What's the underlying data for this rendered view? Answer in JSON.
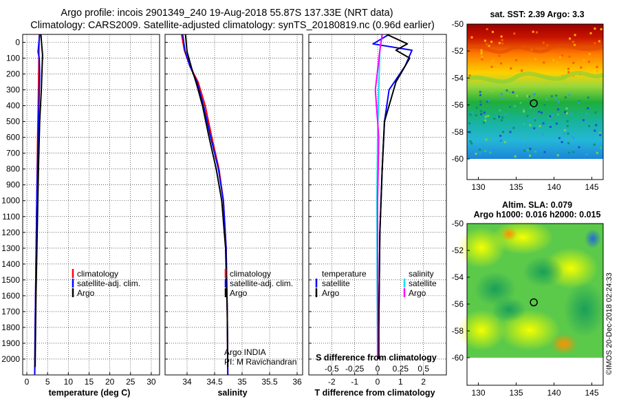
{
  "header": {
    "line1": "Argo profile: incois 2901349_240 19-Aug-2018 55.87S 137.33E (NRT data)",
    "line2": "Climatology: CARS2009. Satellite-adjusted climatology: synTS_20180819.nc (0.96d earlier)"
  },
  "colors": {
    "climatology": "#ff0000",
    "satellite": "#0000ff",
    "argo": "#000000",
    "sat_salinity": "#00e5ee",
    "argo_salinity": "#ff00ff"
  },
  "chart_data": [
    {
      "type": "line",
      "id": "temperature",
      "xlabel": "temperature (deg C)",
      "ylabel": "",
      "xlim": [
        -1,
        32
      ],
      "ylim": [
        2100,
        -50
      ],
      "xticks": [
        0,
        5,
        10,
        15,
        20,
        25,
        30
      ],
      "yticks": [
        0,
        100,
        200,
        300,
        400,
        500,
        600,
        700,
        800,
        900,
        1000,
        1100,
        1200,
        1300,
        1400,
        1500,
        1600,
        1700,
        1800,
        1900,
        2000
      ],
      "series": [
        {
          "name": "climatology",
          "color": "#ff0000",
          "points": [
            [
              3.0,
              -50
            ],
            [
              2.9,
              100
            ],
            [
              2.8,
              300
            ],
            [
              2.6,
              600
            ],
            [
              2.4,
              1000
            ],
            [
              2.2,
              1400
            ],
            [
              2.0,
              1800
            ],
            [
              1.9,
              2100
            ]
          ]
        },
        {
          "name": "satellite-adj. clim.",
          "color": "#0000ff",
          "points": [
            [
              3.1,
              -50
            ],
            [
              2.7,
              60
            ],
            [
              3.0,
              100
            ],
            [
              3.1,
              200
            ],
            [
              3.0,
              300
            ],
            [
              2.7,
              600
            ],
            [
              2.4,
              1000
            ],
            [
              2.2,
              1400
            ],
            [
              2.0,
              1800
            ],
            [
              1.9,
              2100
            ]
          ]
        },
        {
          "name": "Argo",
          "color": "#000000",
          "points": [
            [
              3.4,
              -50
            ],
            [
              3.6,
              20
            ],
            [
              3.8,
              80
            ],
            [
              3.7,
              150
            ],
            [
              3.5,
              300
            ],
            [
              3.1,
              500
            ],
            [
              2.8,
              800
            ],
            [
              2.5,
              1200
            ],
            [
              2.2,
              1600
            ],
            [
              2.0,
              2050
            ]
          ]
        }
      ],
      "legend": {
        "position": "lower-right",
        "items": [
          "climatology",
          "satellite-adj. clim.",
          "Argo"
        ]
      }
    },
    {
      "type": "line",
      "id": "salinity",
      "xlabel": "salinity",
      "xlim": [
        33.6,
        36.1
      ],
      "ylim": [
        2100,
        -50
      ],
      "xticks": [
        34,
        34.5,
        35,
        35.5,
        36
      ],
      "xticklabels": [
        "34",
        "34.5",
        "35",
        "35.5",
        "36"
      ],
      "series": [
        {
          "name": "climatology",
          "color": "#ff0000",
          "points": [
            [
              33.9,
              -50
            ],
            [
              33.95,
              50
            ],
            [
              34.05,
              150
            ],
            [
              34.2,
              250
            ],
            [
              34.33,
              400
            ],
            [
              34.45,
              600
            ],
            [
              34.58,
              800
            ],
            [
              34.66,
              1000
            ],
            [
              34.71,
              1300
            ],
            [
              34.73,
              1700
            ],
            [
              34.74,
              2100
            ]
          ]
        },
        {
          "name": "satellite-adj. clim.",
          "color": "#0000ff",
          "points": [
            [
              33.92,
              -50
            ],
            [
              33.96,
              50
            ],
            [
              34.05,
              150
            ],
            [
              34.18,
              250
            ],
            [
              34.3,
              400
            ],
            [
              34.43,
              600
            ],
            [
              34.57,
              800
            ],
            [
              34.66,
              1000
            ],
            [
              34.71,
              1300
            ],
            [
              34.73,
              1700
            ],
            [
              34.74,
              2100
            ]
          ]
        },
        {
          "name": "Argo",
          "color": "#000000",
          "points": [
            [
              33.97,
              -50
            ],
            [
              34.0,
              60
            ],
            [
              34.08,
              160
            ],
            [
              34.17,
              260
            ],
            [
              34.28,
              400
            ],
            [
              34.4,
              600
            ],
            [
              34.53,
              800
            ],
            [
              34.63,
              1000
            ],
            [
              34.7,
              1300
            ],
            [
              34.73,
              1700
            ],
            [
              34.74,
              2050
            ]
          ]
        }
      ],
      "legend": {
        "position": "lower-right",
        "items": [
          "climatology",
          "satellite-adj. clim.",
          "Argo"
        ]
      },
      "annotation": [
        "Argo INDIA",
        "PI: M Ravichandran"
      ]
    },
    {
      "type": "line",
      "id": "differences",
      "xlabel": "T difference from climatology",
      "xlabel_top": "S difference from climatology",
      "xlim": [
        -3,
        3
      ],
      "ylim": [
        2100,
        -50
      ],
      "xticks": [
        -2,
        -1,
        0,
        1,
        2
      ],
      "xticks_top": [
        -0.5,
        -0.25,
        0,
        0.25,
        0.5
      ],
      "xticklabels_top": [
        "-0.5",
        "-0.25",
        "0",
        "0.25",
        "0.5"
      ],
      "series": [
        {
          "name": "temperature satellite",
          "color": "#0000ff",
          "points": [
            [
              0.5,
              -50
            ],
            [
              -0.2,
              10
            ],
            [
              1.5,
              50
            ],
            [
              1.2,
              150
            ],
            [
              0.5,
              300
            ],
            [
              0.3,
              500
            ],
            [
              0.2,
              800
            ],
            [
              0.1,
              1200
            ],
            [
              0.05,
              1800
            ],
            [
              0.05,
              2000
            ]
          ]
        },
        {
          "name": "temperature Argo",
          "color": "#000000",
          "points": [
            [
              0.4,
              -50
            ],
            [
              1.3,
              10
            ],
            [
              0.8,
              50
            ],
            [
              1.4,
              100
            ],
            [
              0.8,
              250
            ],
            [
              0.3,
              500
            ],
            [
              0.2,
              800
            ],
            [
              0.1,
              1200
            ],
            [
              0.05,
              1800
            ],
            [
              0.05,
              2000
            ]
          ]
        },
        {
          "name": "salinity satellite",
          "color": "#00e5ee",
          "points": [
            [
              0.2,
              -50
            ],
            [
              0.1,
              50
            ],
            [
              0.05,
              300
            ],
            [
              0.0,
              600
            ],
            [
              -0.03,
              1000
            ],
            [
              -0.02,
              1500
            ],
            [
              0,
              2000
            ]
          ]
        },
        {
          "name": "salinity Argo",
          "color": "#ff00ff",
          "points": [
            [
              0.2,
              -50
            ],
            [
              0.1,
              50
            ],
            [
              -0.1,
              300
            ],
            [
              0.05,
              600
            ],
            [
              0.0,
              1000
            ],
            [
              0.0,
              1500
            ],
            [
              0,
              2000
            ]
          ]
        }
      ],
      "legend": {
        "temperature_title": "temperature",
        "salinity_title": "salinity",
        "temperature_items": [
          "satellite",
          "Argo"
        ],
        "salinity_items": [
          "satellite",
          "Argo"
        ]
      }
    },
    {
      "type": "heatmap",
      "id": "sst_map",
      "title": "sat. SST: 2.39  Argo: 3.3",
      "xlim": [
        128.5,
        146.5
      ],
      "ylim": [
        -61.5,
        -50
      ],
      "xticks": [
        130,
        135,
        140,
        145
      ],
      "yticks": [
        -50,
        -52,
        -54,
        -56,
        -58,
        -60
      ],
      "yticklabels": [
        "-50",
        "-52",
        "-54",
        "-56",
        "-58",
        "-60"
      ],
      "marker": {
        "lon": 137.33,
        "lat": -55.87
      }
    },
    {
      "type": "heatmap",
      "id": "sla_map",
      "title": "Altim. SLA: 0.079",
      "subtitle": "Argo h1000: 0.016  h2000: 0.015",
      "xlim": [
        128.5,
        146.5
      ],
      "ylim": [
        -61.5,
        -50
      ],
      "xticks": [
        130,
        135,
        140,
        145
      ],
      "yticks": [
        -50,
        -52,
        -54,
        -56,
        -58,
        -60
      ],
      "yticklabels": [
        "-50",
        "-52",
        "-54",
        "-56",
        "-58",
        "-60"
      ],
      "marker": {
        "lon": 137.33,
        "lat": -55.87
      }
    }
  ],
  "credit": "©IMOS 20-Dec-2018 02:24:33"
}
